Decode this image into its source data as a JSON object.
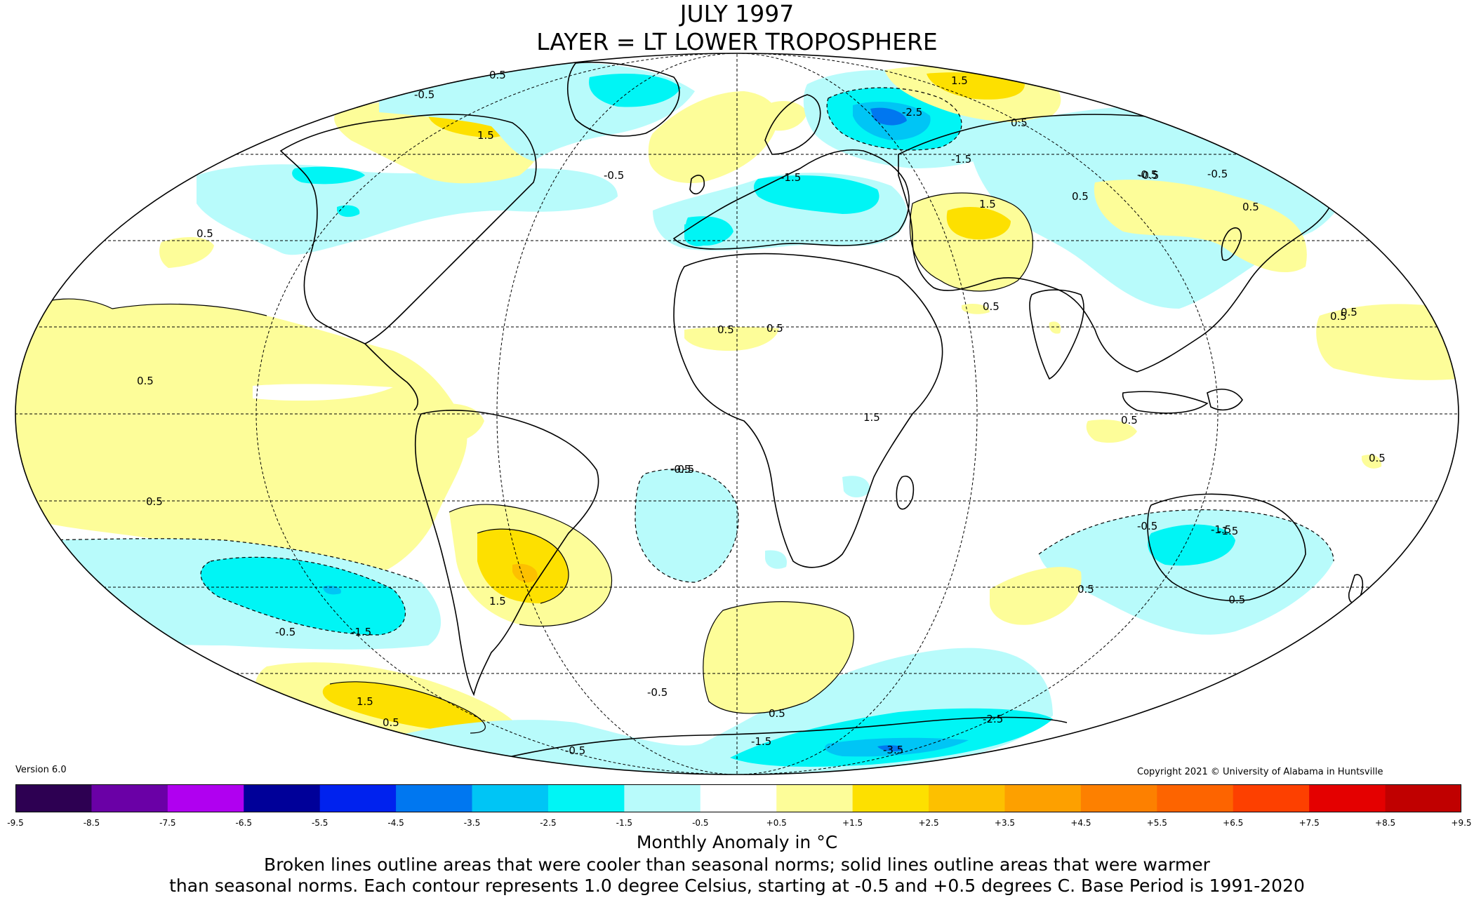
{
  "title": "JULY 1997",
  "subtitle": "LAYER = LT LOWER TROPOSPHERE",
  "version": "Version 6.0",
  "copyright": "Copyright 2021 © University of Alabama in Huntsville",
  "colorbar": {
    "unit_label": "Monthly Anomaly in °C",
    "tick_labels": [
      "-9.5",
      "-8.5",
      "-7.5",
      "-6.5",
      "-5.5",
      "-4.5",
      "-3.5",
      "-2.5",
      "-1.5",
      "-0.5",
      "+0.5",
      "+1.5",
      "+2.5",
      "+3.5",
      "+4.5",
      "+5.5",
      "+6.5",
      "+7.5",
      "+8.5",
      "+9.5"
    ],
    "colors": [
      "#2d0052",
      "#6a00a6",
      "#b000f0",
      "#000099",
      "#0022ee",
      "#0077f0",
      "#00c5f5",
      "#00f5f5",
      "#b8fbfb",
      "#ffffff",
      "#fdfd99",
      "#fde000",
      "#fdc000",
      "#fda000",
      "#fd8000",
      "#fd6400",
      "#fd4000",
      "#e40000",
      "#c00000"
    ]
  },
  "caption": {
    "line1": "Broken lines outline areas that were cooler than seasonal norms; solid lines outline areas that were warmer",
    "line2": "than seasonal norms. Each contour represents 1.0 degree Celsius, starting at -0.5 and +0.5 degrees C. Base Period is 1991-2020"
  },
  "contour_labels": [
    "0.5",
    "1.5",
    "-0.5",
    "0.5",
    "1.5",
    "-0.5",
    "0.5",
    "-0.5",
    "0.5",
    "-1.5",
    "1.5",
    "-2.5",
    "-1.5",
    "-1.5",
    "0.5",
    "-0.5",
    "1.5",
    "0.5",
    "0.5",
    "0.5",
    "0.5",
    "-0.5",
    "0.5",
    "-0.5",
    "0.5",
    "-0.5",
    "-0.5",
    "-1.5",
    "0.5",
    "1.5",
    "0.5",
    "0.5",
    "1.5",
    "0.5",
    "-0.5",
    "-0.5",
    "-0.5",
    "0.5",
    "-1.5",
    "-3.5",
    "-2.5",
    "-0.5",
    "0.5",
    "-1.5"
  ],
  "map_colors": {
    "cool_05": "#b8fbfb",
    "cool_15": "#00f5f5",
    "cool_25": "#00c5f5",
    "cool_35": "#0077f0",
    "warm_05": "#fdfd99",
    "warm_15": "#fde000",
    "warm_25": "#fdc000"
  }
}
